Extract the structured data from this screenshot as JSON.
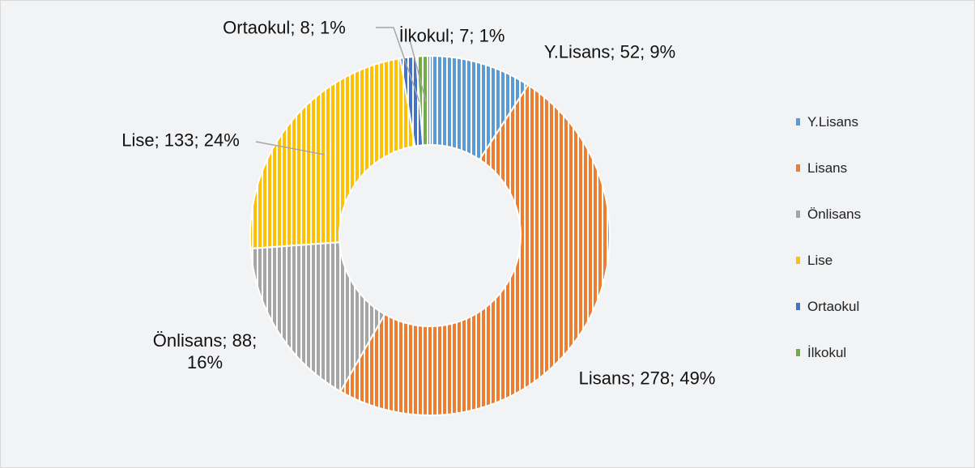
{
  "chart_data": {
    "type": "donut",
    "categories": [
      "Y.Lisans",
      "Lisans",
      "Önlisans",
      "Lise",
      "Ortaokul",
      "İlkokul"
    ],
    "values": [
      52,
      278,
      88,
      133,
      8,
      7
    ],
    "value_labels": [
      "Y.Lisans; 52; 9%",
      "Lisans; 278; 49%",
      "Önlisans; 88; 16%",
      "Lise; 133; 24%",
      "Ortaokul; 8; 1%",
      "İlkokul; 7; 1%"
    ],
    "colors": [
      "#5b9bd5",
      "#ed7d31",
      "#a5a5a5",
      "#ffc000",
      "#4472c4",
      "#70ad47"
    ],
    "legend": "right"
  }
}
